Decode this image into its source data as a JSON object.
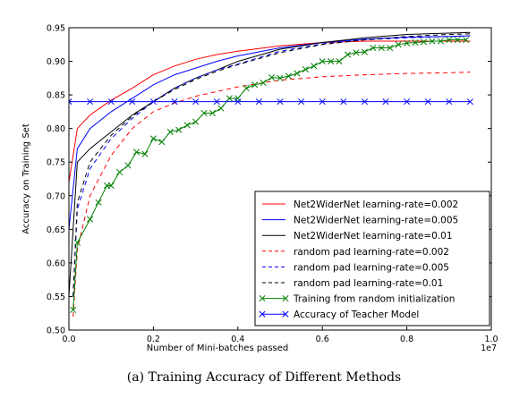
{
  "caption": "(a) Training Accuracy of Different Methods",
  "chart_data": {
    "type": "line",
    "xlabel": "Number of Mini-batches passed",
    "ylabel": "Accuracy on Training Set",
    "x_multiplier_label": "1e7",
    "xlim": [
      0,
      1.0
    ],
    "ylim": [
      0.5,
      0.95
    ],
    "xticks": [
      "0.0",
      "0.2",
      "0.4",
      "0.6",
      "0.8",
      "1.0"
    ],
    "yticks": [
      "0.50",
      "0.55",
      "0.60",
      "0.65",
      "0.70",
      "0.75",
      "0.80",
      "0.85",
      "0.90",
      "0.95"
    ],
    "grid": false,
    "legend_position": "lower-right",
    "series": [
      {
        "name": "Net2WiderNet learning-rate=0.002",
        "color": "#ff0000",
        "dash": "solid",
        "marker": "none",
        "x": [
          0.0,
          0.02,
          0.05,
          0.1,
          0.15,
          0.2,
          0.25,
          0.3,
          0.35,
          0.4,
          0.5,
          0.6,
          0.7,
          0.8,
          0.9,
          0.95
        ],
        "y": [
          0.72,
          0.8,
          0.82,
          0.842,
          0.86,
          0.88,
          0.893,
          0.903,
          0.91,
          0.915,
          0.923,
          0.928,
          0.93,
          0.93,
          0.93,
          0.93
        ]
      },
      {
        "name": "Net2WiderNet learning-rate=0.005",
        "color": "#0000ff",
        "dash": "solid",
        "marker": "none",
        "x": [
          0.0,
          0.02,
          0.05,
          0.1,
          0.15,
          0.2,
          0.25,
          0.3,
          0.35,
          0.4,
          0.5,
          0.6,
          0.7,
          0.8,
          0.9,
          0.95
        ],
        "y": [
          0.65,
          0.77,
          0.8,
          0.825,
          0.845,
          0.865,
          0.88,
          0.89,
          0.9,
          0.908,
          0.92,
          0.928,
          0.933,
          0.936,
          0.937,
          0.938
        ]
      },
      {
        "name": "Net2WiderNet learning-rate=0.01",
        "color": "#000000",
        "dash": "solid",
        "marker": "none",
        "x": [
          0.0,
          0.02,
          0.05,
          0.1,
          0.15,
          0.2,
          0.25,
          0.3,
          0.35,
          0.4,
          0.5,
          0.6,
          0.7,
          0.8,
          0.9,
          0.95
        ],
        "y": [
          0.55,
          0.75,
          0.77,
          0.795,
          0.82,
          0.84,
          0.86,
          0.875,
          0.887,
          0.9,
          0.918,
          0.928,
          0.935,
          0.94,
          0.942,
          0.943
        ]
      },
      {
        "name": "random pad learning-rate=0.002",
        "color": "#ff0000",
        "dash": "dashed",
        "marker": "none",
        "x": [
          0.01,
          0.02,
          0.05,
          0.1,
          0.15,
          0.2,
          0.25,
          0.3,
          0.35,
          0.4,
          0.5,
          0.6,
          0.7,
          0.8,
          0.9,
          0.95
        ],
        "y": [
          0.52,
          0.62,
          0.7,
          0.76,
          0.8,
          0.825,
          0.838,
          0.848,
          0.855,
          0.862,
          0.872,
          0.877,
          0.88,
          0.882,
          0.883,
          0.884
        ]
      },
      {
        "name": "random pad learning-rate=0.005",
        "color": "#0000ff",
        "dash": "dashed",
        "marker": "none",
        "x": [
          0.01,
          0.02,
          0.05,
          0.1,
          0.15,
          0.2,
          0.25,
          0.3,
          0.35,
          0.4,
          0.5,
          0.6,
          0.7,
          0.8,
          0.9,
          0.95
        ],
        "y": [
          0.55,
          0.68,
          0.74,
          0.785,
          0.815,
          0.84,
          0.86,
          0.875,
          0.887,
          0.896,
          0.915,
          0.926,
          0.932,
          0.935,
          0.937,
          0.938
        ]
      },
      {
        "name": "random pad learning-rate=0.01",
        "color": "#000000",
        "dash": "dashed",
        "marker": "none",
        "x": [
          0.01,
          0.02,
          0.05,
          0.1,
          0.15,
          0.2,
          0.25,
          0.3,
          0.35,
          0.4,
          0.5,
          0.6,
          0.7,
          0.8,
          0.9,
          0.95
        ],
        "y": [
          0.55,
          0.69,
          0.75,
          0.79,
          0.818,
          0.84,
          0.858,
          0.873,
          0.885,
          0.895,
          0.913,
          0.925,
          0.932,
          0.937,
          0.94,
          0.941
        ]
      },
      {
        "name": "Training from random initialization",
        "color": "#008000",
        "dash": "solid",
        "marker": "x",
        "x": [
          0.01,
          0.02,
          0.05,
          0.07,
          0.09,
          0.1,
          0.12,
          0.14,
          0.16,
          0.18,
          0.2,
          0.22,
          0.24,
          0.26,
          0.28,
          0.3,
          0.32,
          0.34,
          0.36,
          0.38,
          0.4,
          0.42,
          0.44,
          0.46,
          0.48,
          0.5,
          0.52,
          0.54,
          0.56,
          0.58,
          0.6,
          0.62,
          0.64,
          0.66,
          0.68,
          0.7,
          0.72,
          0.74,
          0.76,
          0.78,
          0.8,
          0.82,
          0.84,
          0.86,
          0.88,
          0.9,
          0.92,
          0.94
        ],
        "y": [
          0.53,
          0.63,
          0.665,
          0.69,
          0.715,
          0.715,
          0.735,
          0.745,
          0.765,
          0.762,
          0.785,
          0.78,
          0.795,
          0.798,
          0.805,
          0.81,
          0.823,
          0.823,
          0.83,
          0.845,
          0.845,
          0.86,
          0.865,
          0.868,
          0.876,
          0.875,
          0.878,
          0.882,
          0.888,
          0.893,
          0.9,
          0.9,
          0.9,
          0.91,
          0.913,
          0.914,
          0.92,
          0.92,
          0.92,
          0.925,
          0.927,
          0.928,
          0.929,
          0.93,
          0.93,
          0.932,
          0.932,
          0.932
        ]
      },
      {
        "name": "Accuracy of Teacher Model",
        "color": "#0000ff",
        "dash": "solid",
        "marker": "x",
        "x": [
          0.0,
          0.05,
          0.1,
          0.15,
          0.2,
          0.25,
          0.3,
          0.35,
          0.4,
          0.45,
          0.5,
          0.55,
          0.6,
          0.65,
          0.7,
          0.75,
          0.8,
          0.85,
          0.9,
          0.95
        ],
        "y": [
          0.84,
          0.84,
          0.84,
          0.84,
          0.84,
          0.84,
          0.84,
          0.84,
          0.84,
          0.84,
          0.84,
          0.84,
          0.84,
          0.84,
          0.84,
          0.84,
          0.84,
          0.84,
          0.84,
          0.84
        ]
      }
    ]
  }
}
